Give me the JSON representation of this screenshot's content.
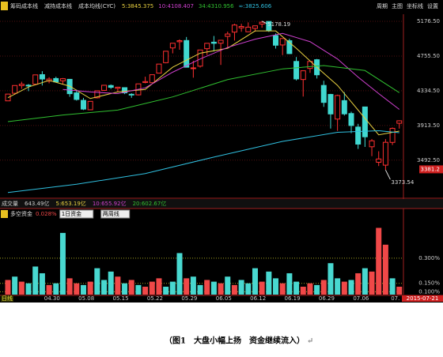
{
  "toolbar": {
    "items": [
      "筹码成本线",
      "减持成本线",
      "成本均线(CYC)"
    ],
    "ma_labels": [
      {
        "text": "5:3845.375",
        "color": "#e8d040"
      },
      {
        "text": "10:4108.407",
        "color": "#d040d0"
      },
      {
        "text": "34:4310.956",
        "color": "#30c030"
      },
      {
        "text": "∞:3825.606",
        "color": "#30c0e0"
      }
    ],
    "buttons": [
      "周期",
      "主图",
      "坐标线",
      "设置"
    ]
  },
  "chart_data": {
    "type": "candlestick",
    "open": [
      4212,
      4304,
      4397,
      4402,
      4414,
      4530,
      4452,
      4483,
      4455,
      4473,
      4309,
      4218,
      4104,
      4249,
      4339,
      4398,
      4364,
      4372,
      4292,
      4285,
      4435,
      4432,
      4548,
      4675,
      4854,
      4929,
      4944,
      4603,
      4633,
      4845,
      4924,
      4911,
      4994,
      5046,
      5098,
      5050,
      5091,
      5144,
      5175,
      5004,
      4890,
      4942,
      4690,
      4471,
      4605,
      4711,
      4399,
      4290,
      3991,
      4215,
      4058,
      3894,
      4138,
      3655,
      3467,
      3432,
      3708,
      3940
    ],
    "high": [
      4294,
      4398,
      4444,
      4416,
      4529,
      4572,
      4499,
      4505,
      4489,
      4478,
      4348,
      4248,
      4206,
      4334,
      4402,
      4411,
      4383,
      4373,
      4304,
      4418,
      4505,
      4530,
      4658,
      4814,
      4911,
      4958,
      4987,
      4698,
      4829,
      4911,
      4999,
      4947,
      5052,
      5147,
      5147,
      5164,
      5124,
      5178,
      5176,
      5030,
      4968,
      4966,
      4744,
      4577,
      4691,
      4720,
      4456,
      4297,
      4287,
      4317,
      4081,
      3933,
      4138,
      3748,
      3600,
      3748,
      3889,
      3976
    ],
    "low": [
      4212,
      4287,
      4358,
      4330,
      4414,
      4398,
      4425,
      4441,
      4410,
      4261,
      4215,
      4100,
      4099,
      4241,
      4334,
      4357,
      4321,
      4294,
      4249,
      4278,
      4425,
      4430,
      4548,
      4668,
      4788,
      4832,
      4617,
      4493,
      4616,
      4767,
      4811,
      4648,
      4856,
      4943,
      5050,
      5050,
      5051,
      5099,
      5048,
      4846,
      4767,
      4780,
      4459,
      4264,
      4552,
      4483,
      4139,
      3876,
      3848,
      4034,
      3820,
      3629,
      3653,
      3541,
      3421,
      3374,
      3676,
      3875
    ],
    "close": [
      4294,
      4398,
      4414,
      4394,
      4527,
      4477,
      4476,
      4442,
      4481,
      4299,
      4229,
      4112,
      4206,
      4334,
      4401,
      4376,
      4378,
      4309,
      4284,
      4418,
      4446,
      4529,
      4658,
      4814,
      4911,
      4942,
      4620,
      4612,
      4829,
      4910,
      4910,
      4947,
      5023,
      5132,
      5114,
      5106,
      5122,
      5166,
      5063,
      4887,
      4968,
      4785,
      4478,
      4577,
      4690,
      4528,
      4193,
      4053,
      4277,
      4054,
      3913,
      3687,
      3776,
      3727,
      3507,
      3709,
      3878,
      3970
    ],
    "up_color": "#ff3030",
    "down_color": "#40d8d0",
    "ylim": [
      3040,
      5263
    ],
    "yticks": [
      {
        "value": 5176.5,
        "label": "5176.50"
      },
      {
        "value": 4755.5,
        "label": "4755.50"
      },
      {
        "value": 4334.5,
        "label": "4334.50"
      },
      {
        "value": 3913.5,
        "label": "3913.50"
      },
      {
        "value": 3492.5,
        "label": "3492.50"
      }
    ],
    "last_price": 3381.2,
    "annotations": [
      {
        "index": 37,
        "value": 5178.19
      },
      {
        "index": 55,
        "value": 3373.54
      }
    ],
    "lines": [
      {
        "color": "#e8d040",
        "x": [
          0,
          3,
          6,
          9,
          12,
          16,
          20,
          24,
          28,
          32,
          36,
          39,
          42,
          45,
          48,
          51,
          54,
          57
        ],
        "values": [
          4250,
          4380,
          4460,
          4390,
          4240,
          4320,
          4350,
          4620,
          4790,
          4850,
          5060,
          5060,
          4850,
          4620,
          4400,
          4100,
          3800,
          3845
        ]
      },
      {
        "color": "#d040d0",
        "x": [
          8,
          12,
          16,
          20,
          24,
          28,
          32,
          36,
          40,
          44,
          48,
          51,
          54,
          57
        ],
        "values": [
          4350,
          4320,
          4300,
          4370,
          4560,
          4720,
          4860,
          4960,
          5030,
          4930,
          4720,
          4500,
          4300,
          4108
        ]
      },
      {
        "color": "#30c030",
        "x": [
          0,
          8,
          16,
          24,
          32,
          40,
          46,
          52,
          57
        ],
        "values": [
          3960,
          4040,
          4100,
          4260,
          4470,
          4600,
          4640,
          4580,
          4311
        ]
      },
      {
        "color": "#30c0e0",
        "x": [
          0,
          10,
          20,
          30,
          40,
          48,
          54,
          57
        ],
        "values": [
          3100,
          3200,
          3330,
          3530,
          3720,
          3830,
          3850,
          3826
        ]
      }
    ],
    "x_labels": [
      {
        "index": 7,
        "label": "04.30"
      },
      {
        "index": 12,
        "label": "05.08"
      },
      {
        "index": 17,
        "label": "05.15"
      },
      {
        "index": 22,
        "label": "05.22"
      },
      {
        "index": 27,
        "label": "05.29"
      },
      {
        "index": 32,
        "label": "06.05"
      },
      {
        "index": 37,
        "label": "06.12"
      },
      {
        "index": 42,
        "label": "06.19"
      },
      {
        "index": 47,
        "label": "06.29"
      },
      {
        "index": 52,
        "label": "07.06"
      },
      {
        "index": 57,
        "label": "07."
      }
    ],
    "period_label": "日线",
    "date_label": "2015-07-21"
  },
  "volume_bar": {
    "title": "成交量",
    "value": "643.49亿",
    "ma5": "5:653.19亿",
    "ma10": "10:655.92亿",
    "ma20": "20:602.67亿"
  },
  "fund_chart": {
    "type": "bar",
    "title": "多空资金",
    "value_text": "0.028%",
    "selector": "1日资金",
    "selector2": "两周线",
    "values": [
      0.17,
      0.19,
      0.16,
      0.15,
      0.25,
      0.21,
      0.14,
      0.15,
      0.45,
      0.18,
      0.15,
      0.14,
      0.16,
      0.24,
      0.17,
      0.22,
      0.19,
      0.15,
      0.17,
      0.14,
      0.13,
      0.16,
      0.18,
      0.13,
      0.16,
      0.33,
      0.18,
      0.19,
      0.14,
      0.17,
      0.16,
      0.15,
      0.19,
      0.14,
      0.17,
      0.15,
      0.24,
      0.16,
      0.22,
      0.18,
      0.15,
      0.21,
      0.16,
      0.13,
      0.15,
      0.14,
      0.17,
      0.27,
      0.18,
      0.16,
      0.17,
      0.21,
      0.24,
      0.22,
      0.48,
      0.38,
      0.18,
      0.13
    ],
    "colors": [
      "#f04848",
      "#48d8d0",
      "#f04848",
      "#48d8d0",
      "#48d8d0",
      "#48d8d0",
      "#f04848",
      "#48d8d0",
      "#48d8d0",
      "#f04848",
      "#f04848",
      "#48d8d0",
      "#f04848",
      "#48d8d0",
      "#48d8d0",
      "#48d8d0",
      "#f04848",
      "#48d8d0",
      "#f04848",
      "#48d8d0",
      "#f04848",
      "#f04848",
      "#f04848",
      "#48d8d0",
      "#48d8d0",
      "#48d8d0",
      "#f04848",
      "#48d8d0",
      "#48d8d0",
      "#f04848",
      "#48d8d0",
      "#f04848",
      "#48d8d0",
      "#f04848",
      "#48d8d0",
      "#48d8d0",
      "#48d8d0",
      "#f04848",
      "#48d8d0",
      "#48d8d0",
      "#f04848",
      "#48d8d0",
      "#48d8d0",
      "#f04848",
      "#f04848",
      "#48d8d0",
      "#f04848",
      "#48d8d0",
      "#48d8d0",
      "#f04848",
      "#48d8d0",
      "#f04848",
      "#48d8d0",
      "#f04848",
      "#f04848",
      "#f04848",
      "#48d8d0",
      "#f04848"
    ],
    "ylim": [
      0.083,
      0.52
    ],
    "yticks": [
      {
        "value": 0.3,
        "label": "0.300%"
      },
      {
        "value": 0.15,
        "label": "0.150%"
      },
      {
        "value": 0.1,
        "label": "0.100%"
      }
    ]
  },
  "caption": {
    "text": "（图1　大盘小幅上扬　资金继续流入）",
    "mark": "↵"
  }
}
